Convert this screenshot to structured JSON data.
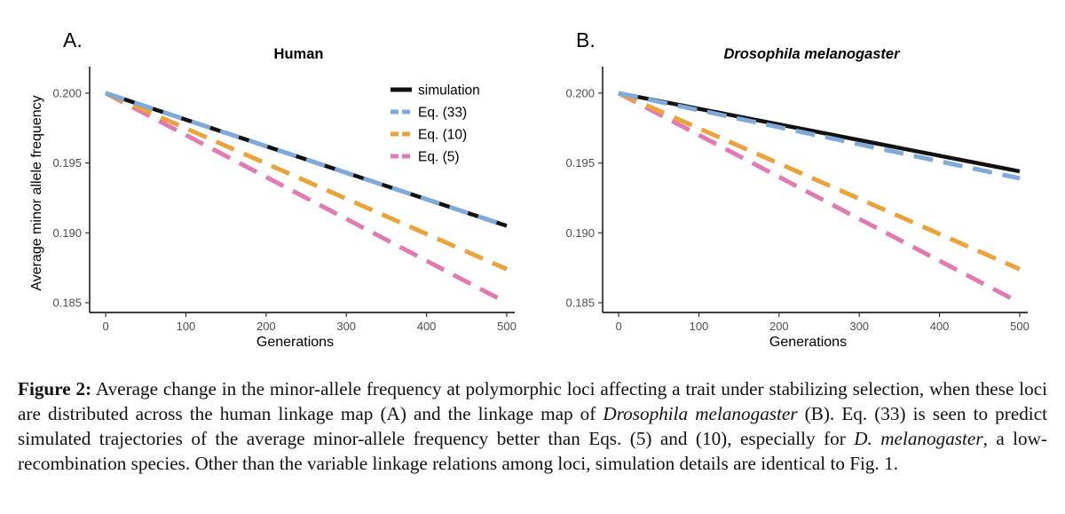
{
  "figure": {
    "caption": {
      "label": "Figure 2:",
      "parts": [
        {
          "text": "  Average change in the minor-allele frequency at polymorphic loci affecting a trait under stabilizing selection, when these loci are distributed across the human linkage map (A) and the linkage map of ",
          "italic": false
        },
        {
          "text": "Drosophila melanogaster",
          "italic": true
        },
        {
          "text": " (B). Eq. (33) is seen to predict simulated trajectories of the average minor-allele frequency better than Eqs. (5) and (10), especially for ",
          "italic": false
        },
        {
          "text": "D. melanogaster",
          "italic": true
        },
        {
          "text": ", a low-recombination species. Other than the variable linkage relations among loci, simulation details are identical to Fig. 1.",
          "italic": false
        }
      ]
    }
  },
  "chart_data": [
    {
      "type": "line",
      "panel_label": "A.",
      "title": "Human",
      "title_italic": false,
      "xlabel": "Generations",
      "ylabel": "Average minor allele frequency",
      "xlim": [
        -20,
        510
      ],
      "ylim": [
        0.1843,
        0.2019
      ],
      "xticks": [
        0,
        100,
        200,
        300,
        400,
        500
      ],
      "xtick_labels": [
        "0",
        "100",
        "200",
        "300",
        "400",
        "500"
      ],
      "yticks": [
        0.185,
        0.19,
        0.195,
        0.2
      ],
      "ytick_labels": [
        "0.185",
        "0.190",
        "0.195",
        "0.200"
      ],
      "grid": false,
      "legend": {
        "visible": true,
        "position": "top-right"
      },
      "series": [
        {
          "name": "simulation",
          "color": "#111111",
          "dashed": false,
          "x": [
            0,
            500
          ],
          "y": [
            0.2,
            0.1905
          ]
        },
        {
          "name": "Eq. (33)",
          "color": "#7fa9d8",
          "dashed": true,
          "x": [
            0,
            500
          ],
          "y": [
            0.2,
            0.1905
          ]
        },
        {
          "name": "Eq. (10)",
          "color": "#eaa23d",
          "dashed": true,
          "x": [
            0,
            500
          ],
          "y": [
            0.2,
            0.1874
          ]
        },
        {
          "name": "Eq. (5)",
          "color": "#e07ab2",
          "dashed": true,
          "x": [
            0,
            500
          ],
          "y": [
            0.2,
            0.185
          ]
        }
      ]
    },
    {
      "type": "line",
      "panel_label": "B.",
      "title": "Drosophila melanogaster",
      "title_italic": true,
      "xlabel": "Generations",
      "ylabel": "",
      "xlim": [
        -20,
        510
      ],
      "ylim": [
        0.1843,
        0.2019
      ],
      "xticks": [
        0,
        100,
        200,
        300,
        400,
        500
      ],
      "xtick_labels": [
        "0",
        "100",
        "200",
        "300",
        "400",
        "500"
      ],
      "yticks": [
        0.185,
        0.19,
        0.195,
        0.2
      ],
      "ytick_labels": [
        "0.185",
        "0.190",
        "0.195",
        "0.200"
      ],
      "grid": false,
      "legend": {
        "visible": false,
        "position": ""
      },
      "series": [
        {
          "name": "simulation",
          "color": "#111111",
          "dashed": false,
          "x": [
            0,
            500
          ],
          "y": [
            0.2,
            0.1944
          ]
        },
        {
          "name": "Eq. (33)",
          "color": "#7fa9d8",
          "dashed": true,
          "x": [
            0,
            500
          ],
          "y": [
            0.2,
            0.1939
          ]
        },
        {
          "name": "Eq. (10)",
          "color": "#eaa23d",
          "dashed": true,
          "x": [
            0,
            500
          ],
          "y": [
            0.2,
            0.1874
          ]
        },
        {
          "name": "Eq. (5)",
          "color": "#e07ab2",
          "dashed": true,
          "x": [
            0,
            500
          ],
          "y": [
            0.2,
            0.185
          ]
        }
      ]
    }
  ]
}
